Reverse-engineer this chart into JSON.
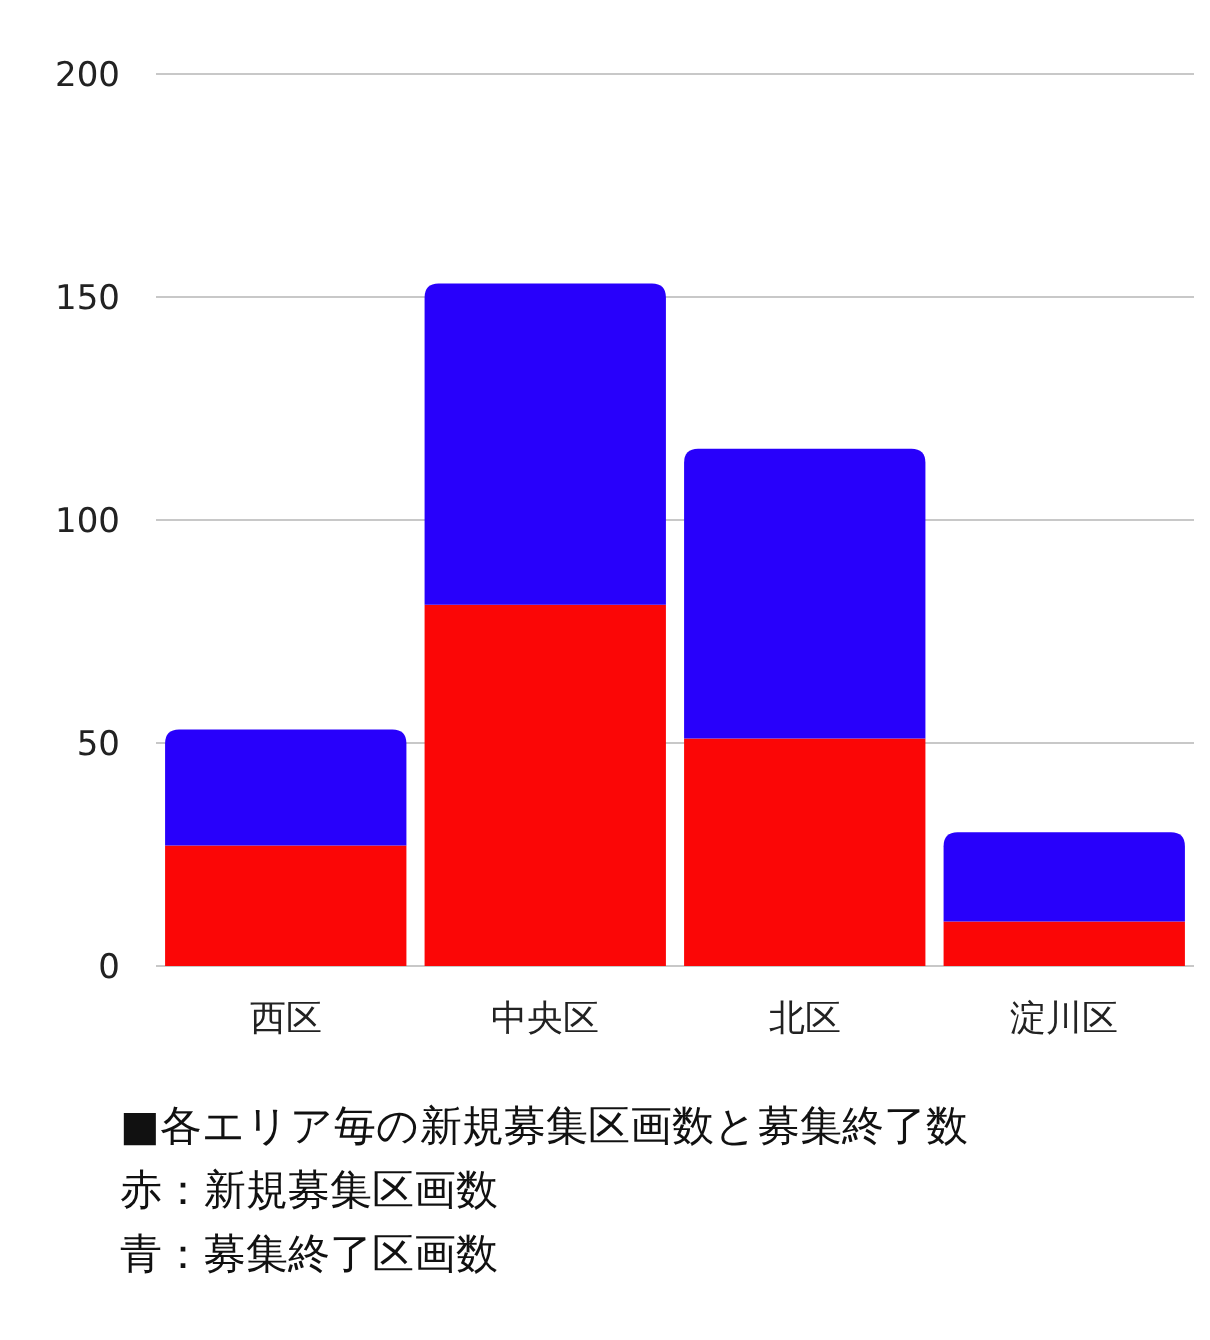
{
  "chart_data": {
    "type": "bar",
    "stacked": true,
    "categories": [
      "西区",
      "中央区",
      "北区",
      "淀川区"
    ],
    "series": [
      {
        "color": "#fb0606",
        "values": [
          27,
          81,
          51,
          10
        ]
      },
      {
        "color": "#2800fb",
        "values": [
          26,
          72,
          65,
          20
        ]
      }
    ],
    "ylim": [
      0,
      200
    ],
    "yticks": [
      0,
      50,
      100,
      150,
      200
    ],
    "grid": "y",
    "annotations": [
      "■各エリア毎の新規募集区画数と募集終了数",
      "赤：新規募集区画数",
      "青：募集終了区画数"
    ]
  }
}
